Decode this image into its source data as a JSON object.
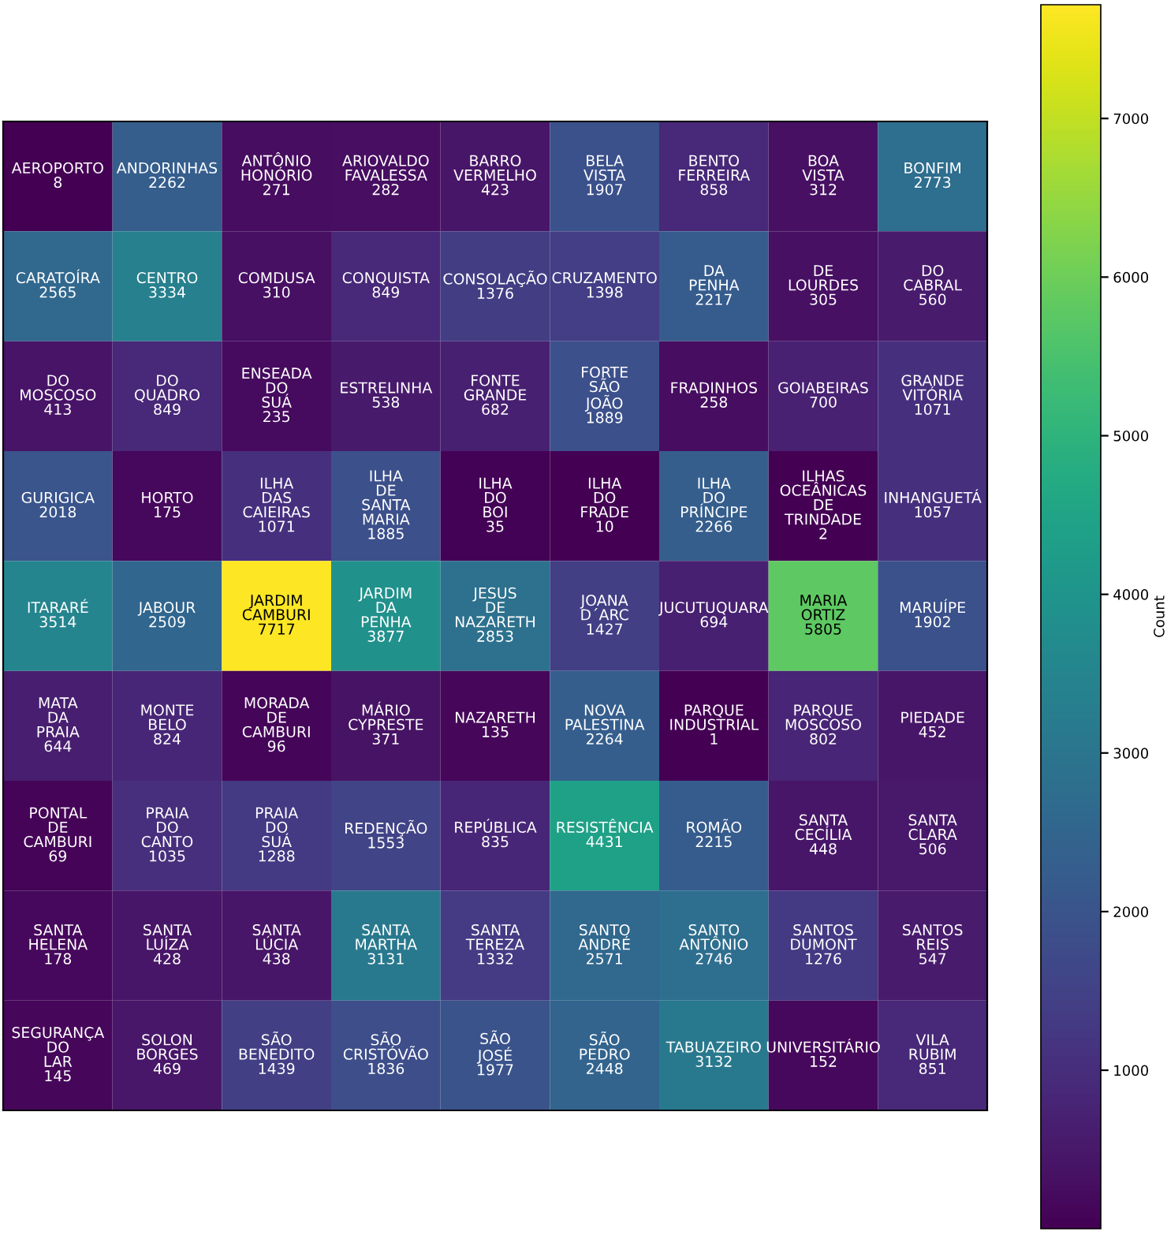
{
  "chart_data": {
    "type": "heatmap",
    "clabel": "Count",
    "categories": [
      null,
      null,
      null,
      null,
      null,
      null,
      null,
      null,
      null
    ],
    "y_categories": [
      null,
      null,
      null,
      null,
      null,
      null,
      null,
      null,
      null
    ],
    "clim": [
      1,
      7717
    ],
    "cticks": [
      1000,
      2000,
      3000,
      4000,
      5000,
      6000,
      7000
    ],
    "cells": [
      [
        8,
        2262,
        271,
        282,
        423,
        1907,
        858,
        312,
        2773
      ],
      [
        2565,
        3334,
        310,
        849,
        1376,
        1398,
        2217,
        305,
        560
      ],
      [
        413,
        849,
        235,
        538,
        682,
        1889,
        258,
        700,
        1071
      ],
      [
        2018,
        175,
        1071,
        1885,
        35,
        10,
        2266,
        2,
        1057
      ],
      [
        3514,
        2509,
        7717,
        3877,
        2853,
        1427,
        694,
        5805,
        1902
      ],
      [
        644,
        824,
        96,
        371,
        135,
        2264,
        1,
        802,
        452
      ],
      [
        69,
        1035,
        1288,
        1553,
        835,
        4431,
        2215,
        448,
        506
      ],
      [
        178,
        428,
        438,
        3131,
        1332,
        2571,
        2746,
        1276,
        547
      ],
      [
        145,
        469,
        1439,
        1836,
        1977,
        2448,
        3132,
        152,
        851
      ]
    ],
    "cell_labels": [
      [
        "AEROPORTO\n8",
        "ANDORINHAS\n2262",
        "ANTÔNIO\nHONÓRIO\n271",
        "ARIOVALDO\nFAVALESSA\n282",
        "BARRO\nVERMELHO\n423",
        "BELA\nVISTA\n1907",
        "BENTO\nFERREIRA\n858",
        "BOA\nVISTA\n312",
        "BONFIM\n2773"
      ],
      [
        "CARATOÍRA\n2565",
        "CENTRO\n3334",
        "COMDUSA\n310",
        "CONQUISTA\n849",
        "CONSOLAÇÃO\n1376",
        "CRUZAMENTO\n1398",
        "DA\nPENHA\n2217",
        "DE\nLOURDES\n305",
        "DO\nCABRAL\n560"
      ],
      [
        "DO\nMOSCOSO\n413",
        "DO\nQUADRO\n849",
        "ENSEADA\nDO\nSUÁ\n235",
        "ESTRELINHA\n538",
        "FONTE\nGRANDE\n682",
        "FORTE\nSÃO\nJOÃO\n1889",
        "FRADINHOS\n258",
        "GOIABEIRAS\n700",
        "GRANDE\nVITÓRIA\n1071"
      ],
      [
        "GURIGICA\n2018",
        "HORTO\n175",
        "ILHA\nDAS\nCAIEIRAS\n1071",
        "ILHA\nDE\nSANTA\nMARIA\n1885",
        "ILHA\nDO\nBOI\n35",
        "ILHA\nDO\nFRADE\n10",
        "ILHA\nDO\nPRÍNCIPE\n2266",
        "ILHAS\nOCEÂNICAS\nDE\nTRINDADE\n2",
        "INHANGUETÁ\n1057"
      ],
      [
        "ITARARÉ\n3514",
        "JABOUR\n2509",
        "JARDIM\nCAMBURI\n7717",
        "JARDIM\nDA\nPENHA\n3877",
        "JESUS\nDE\nNAZARETH\n2853",
        "JOANA\nD´ARC\n1427",
        "JUCUTUQUARA\n694",
        "MARIA\nORTIZ\n5805",
        "MARUÍPE\n1902"
      ],
      [
        "MATA\nDA\nPRAIA\n644",
        "MONTE\nBELO\n824",
        "MORADA\nDE\nCAMBURI\n96",
        "MÁRIO\nCYPRESTE\n371",
        "NAZARETH\n135",
        "NOVA\nPALESTINA\n2264",
        "PARQUE\nINDUSTRIAL\n1",
        "PARQUE\nMOSCOSO\n802",
        "PIEDADE\n452"
      ],
      [
        "PONTAL\nDE\nCAMBURI\n69",
        "PRAIA\nDO\nCANTO\n1035",
        "PRAIA\nDO\nSUÁ\n1288",
        "REDENÇÃO\n1553",
        "REPÚBLICA\n835",
        "RESISTÊNCIA\n4431",
        "ROMÃO\n2215",
        "SANTA\nCECÍLIA\n448",
        "SANTA\nCLARA\n506"
      ],
      [
        "SANTA\nHELENA\n178",
        "SANTA\nLUÍZA\n428",
        "SANTA\nLÚCIA\n438",
        "SANTA\nMARTHA\n3131",
        "SANTA\nTEREZA\n1332",
        "SANTO\nANDRÉ\n2571",
        "SANTO\nANTÔNIO\n2746",
        "SANTOS\nDUMONT\n1276",
        "SANTOS\nREIS\n547"
      ],
      [
        "SEGURANÇA\nDO\nLAR\n145",
        "SOLON\nBORGES\n469",
        "SÃO\nBENEDITO\n1439",
        "SÃO\nCRISTÓVÃO\n1836",
        "SÃO\nJOSÉ\n1977",
        "SÃO\nPEDRO\n2448",
        "TABUAZEIRO\n3132",
        "UNIVERSITÁRIO\n152",
        "VILA\nRUBIM\n851"
      ]
    ]
  }
}
